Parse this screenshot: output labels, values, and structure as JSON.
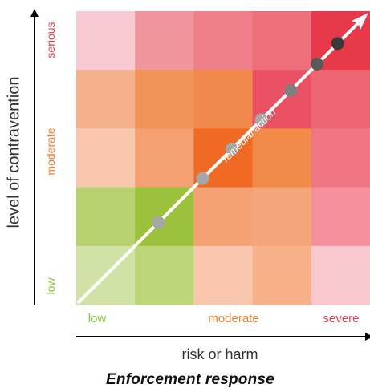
{
  "figure": {
    "title": "Enforcement response",
    "y_axis_title": "level of contravention",
    "x_axis_title": "risk or harm",
    "y_ticks": [
      {
        "label": "low",
        "color": "#8dc63f"
      },
      {
        "label": "moderate",
        "color": "#f07f2d"
      },
      {
        "label": "serious",
        "color": "#e8424f"
      }
    ],
    "x_ticks": [
      {
        "label": "low",
        "color": "#8dc63f"
      },
      {
        "label": "moderate",
        "color": "#f07f2d"
      },
      {
        "label": "severe",
        "color": "#e8424f"
      }
    ],
    "diagonal_label": "remedial action"
  },
  "grid": {
    "rows": 5,
    "cols": 5,
    "cell_colors": [
      [
        "#f8cbd2",
        "#f1959d",
        "#ef7f89",
        "#ee6e79",
        "#e8394a"
      ],
      [
        "#f5b08c",
        "#f19459",
        "#f1894c",
        "#ea5263",
        "#ef6673"
      ],
      [
        "#f8c7ae",
        "#f4a072",
        "#f06a23",
        "#f28b4a",
        "#f07684"
      ],
      [
        "#b7d170",
        "#9cc23c",
        "#f4a072",
        "#f5a57a",
        "#f4919c"
      ],
      [
        "#d1e3a4",
        "#bcd579",
        "#f9c7ad",
        "#f6b08a",
        "#f9c8cf"
      ]
    ]
  },
  "markers": [
    {
      "x": 1.4,
      "y": 1.4,
      "color": "#a6a6a6"
    },
    {
      "x": 2.15,
      "y": 2.15,
      "color": "#a6a6a6"
    },
    {
      "x": 2.65,
      "y": 2.65,
      "color": "#a6a6a6"
    },
    {
      "x": 3.15,
      "y": 3.15,
      "color": "#a6a6a6"
    },
    {
      "x": 3.65,
      "y": 3.65,
      "color": "#7f7f7f"
    },
    {
      "x": 4.1,
      "y": 4.1,
      "color": "#595959"
    },
    {
      "x": 4.45,
      "y": 4.45,
      "color": "#3a3a3a"
    }
  ]
}
